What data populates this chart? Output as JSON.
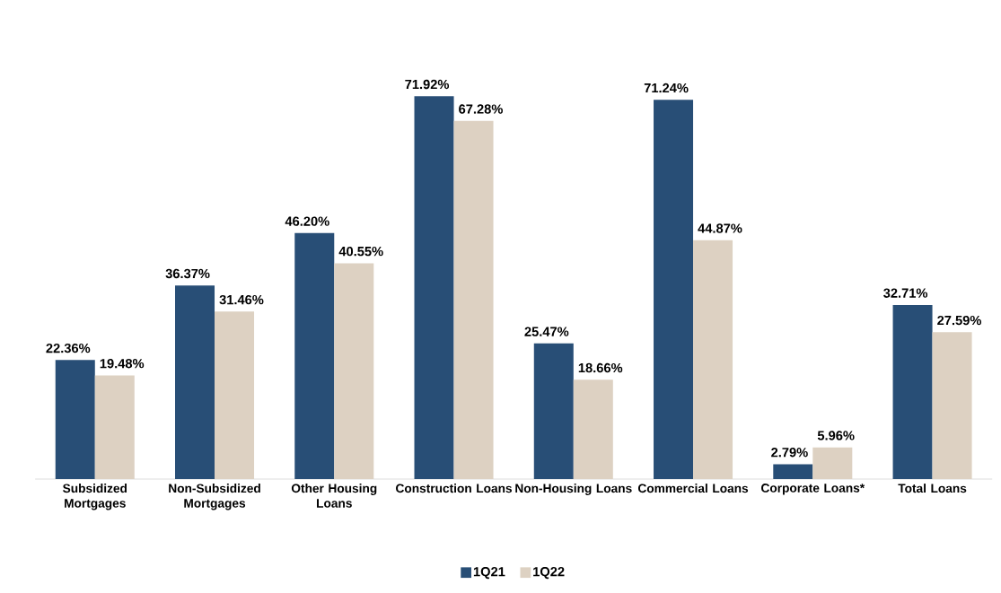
{
  "chart_data": {
    "type": "bar",
    "categories": [
      "Subsidized Mortgages",
      "Non-Subsidized Mortgages",
      "Other Housing Loans",
      "Construction Loans",
      "Non-Housing Loans",
      "Commercial Loans",
      "Corporate Loans*",
      "Total Loans"
    ],
    "series": [
      {
        "name": "1Q21",
        "color": "#284e76",
        "values": [
          22.36,
          36.37,
          46.2,
          71.92,
          25.47,
          71.24,
          2.79,
          32.71
        ],
        "value_labels": [
          "22.36%",
          "36.37%",
          "46.20%",
          "71.92%",
          "25.47%",
          "71.24%",
          "2.79%",
          "32.71%"
        ]
      },
      {
        "name": "1Q22",
        "color": "#ddd1c2",
        "values": [
          19.48,
          31.46,
          40.55,
          67.28,
          18.66,
          44.87,
          5.96,
          27.59
        ],
        "value_labels": [
          "19.48%",
          "31.46%",
          "40.55%",
          "67.28%",
          "18.66%",
          "44.87%",
          "5.96%",
          "27.59%"
        ]
      }
    ],
    "legend": "bottom"
  }
}
